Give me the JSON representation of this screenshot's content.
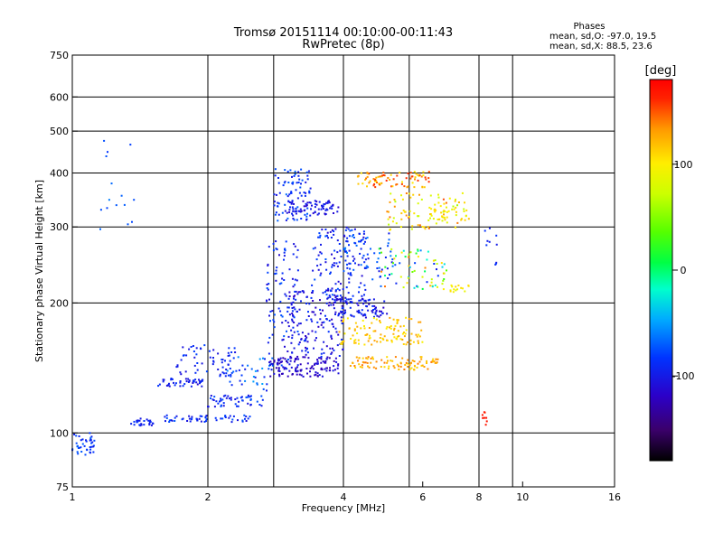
{
  "chart_data": {
    "type": "scatter",
    "title": "Tromsø 20151114 00:10:00-00:11:43",
    "subtitle": "RwPretec (8p)",
    "xlabel": "Frequency [MHz]",
    "ylabel": "Stationary phase Virtual Height [km]",
    "x_scale": "log",
    "y_scale": "log",
    "xlim": [
      1,
      16
    ],
    "ylim": [
      75,
      750
    ],
    "x_ticks": [
      1,
      2,
      4,
      6,
      8,
      10,
      16
    ],
    "x_tick_labels": [
      "1",
      "2",
      "4",
      "6",
      "8",
      "10",
      "16"
    ],
    "y_ticks": [
      75,
      100,
      200,
      300,
      400,
      500,
      600,
      750
    ],
    "y_tick_labels": [
      "75",
      "100",
      "200",
      "300",
      "400",
      "500",
      "600",
      "750"
    ],
    "x_gridlines": [
      2,
      2.8,
      4,
      5.6,
      8,
      9.5
    ],
    "y_gridlines": [
      100,
      200,
      300,
      400,
      500,
      600
    ],
    "grid": true,
    "stats": {
      "heading": "Phases",
      "line1": "mean, sd,O:  -97.0,  19.5",
      "line2": "mean, sd,X:   88.5,  23.6"
    },
    "colorbar": {
      "label": "[deg]",
      "range": [
        -180,
        180
      ],
      "ticks": [
        100,
        0,
        -100
      ],
      "tick_labels": [
        "100",
        "0",
        "-100"
      ],
      "colors": [
        "#000000",
        "#3a006a",
        "#2c00c8",
        "#0033ff",
        "#00aaff",
        "#00ffcc",
        "#00ff44",
        "#55ff00",
        "#ccff00",
        "#ffee00",
        "#ff9900",
        "#ff2200",
        "#ff0000"
      ]
    },
    "clusters": [
      {
        "x": [
          1.0,
          1.12
        ],
        "y": [
          88,
          100
        ],
        "phase": [
          -105,
          -75
        ],
        "n": 40
      },
      {
        "x": [
          1.35,
          1.55
        ],
        "y": [
          104,
          108
        ],
        "phase": [
          -110,
          -90
        ],
        "n": 25
      },
      {
        "x": [
          1.55,
          1.95
        ],
        "y": [
          128,
          134
        ],
        "phase": [
          -115,
          -90
        ],
        "n": 45
      },
      {
        "x": [
          1.6,
          2.5
        ],
        "y": [
          106,
          110
        ],
        "phase": [
          -110,
          -80
        ],
        "n": 55
      },
      {
        "x": [
          1.7,
          2.3
        ],
        "y": [
          135,
          160
        ],
        "phase": [
          -115,
          -85
        ],
        "n": 60
      },
      {
        "x": [
          2.0,
          2.7
        ],
        "y": [
          115,
          123
        ],
        "phase": [
          -110,
          -80
        ],
        "n": 50
      },
      {
        "x": [
          2.2,
          2.8
        ],
        "y": [
          125,
          150
        ],
        "phase": [
          -105,
          -60
        ],
        "n": 40
      },
      {
        "x": [
          2.7,
          3.2
        ],
        "y": [
          140,
          285
        ],
        "phase": [
          -115,
          -80
        ],
        "n": 110
      },
      {
        "x": [
          2.75,
          3.9
        ],
        "y": [
          135,
          150
        ],
        "phase": [
          -130,
          -105
        ],
        "n": 120
      },
      {
        "x": [
          2.8,
          3.4
        ],
        "y": [
          310,
          410
        ],
        "phase": [
          -110,
          -75
        ],
        "n": 90
      },
      {
        "x": [
          3.0,
          3.9
        ],
        "y": [
          320,
          345
        ],
        "phase": [
          -120,
          -95
        ],
        "n": 70
      },
      {
        "x": [
          3.0,
          4.0
        ],
        "y": [
          150,
          215
        ],
        "phase": [
          -125,
          -90
        ],
        "n": 150
      },
      {
        "x": [
          3.4,
          4.5
        ],
        "y": [
          200,
          300
        ],
        "phase": [
          -115,
          -80
        ],
        "n": 130
      },
      {
        "x": [
          3.8,
          5.0
        ],
        "y": [
          185,
          205
        ],
        "phase": [
          -120,
          -90
        ],
        "n": 80
      },
      {
        "x": [
          4.0,
          5.2
        ],
        "y": [
          225,
          290
        ],
        "phase": [
          -110,
          -70
        ],
        "n": 60
      },
      {
        "x": [
          4.1,
          6.5
        ],
        "y": [
          140,
          150
        ],
        "phase": [
          95,
          130
        ],
        "n": 90
      },
      {
        "x": [
          3.9,
          6.0
        ],
        "y": [
          160,
          185
        ],
        "phase": [
          85,
          120
        ],
        "n": 110
      },
      {
        "x": [
          4.3,
          6.2
        ],
        "y": [
          370,
          405
        ],
        "phase": [
          90,
          150
        ],
        "n": 80
      },
      {
        "x": [
          5.0,
          7.5
        ],
        "y": [
          295,
          360
        ],
        "phase": [
          50,
          140
        ],
        "n": 80
      },
      {
        "x": [
          4.8,
          6.8
        ],
        "y": [
          215,
          270
        ],
        "phase": [
          -110,
          130
        ],
        "n": 70
      },
      {
        "x": [
          6.2,
          7.6
        ],
        "y": [
          310,
          335
        ],
        "phase": [
          75,
          105
        ],
        "n": 30
      },
      {
        "x": [
          6.9,
          7.6
        ],
        "y": [
          210,
          220
        ],
        "phase": [
          75,
          100
        ],
        "n": 15
      },
      {
        "x": [
          1.15,
          1.4
        ],
        "y": [
          290,
          480
        ],
        "phase": [
          -95,
          -70
        ],
        "n": 15
      },
      {
        "x": [
          8.0,
          8.4
        ],
        "y": [
          104,
          112
        ],
        "phase": [
          150,
          170
        ],
        "n": 8
      },
      {
        "x": [
          8.2,
          8.8
        ],
        "y": [
          245,
          300
        ],
        "phase": [
          -110,
          -90
        ],
        "n": 10
      }
    ]
  }
}
